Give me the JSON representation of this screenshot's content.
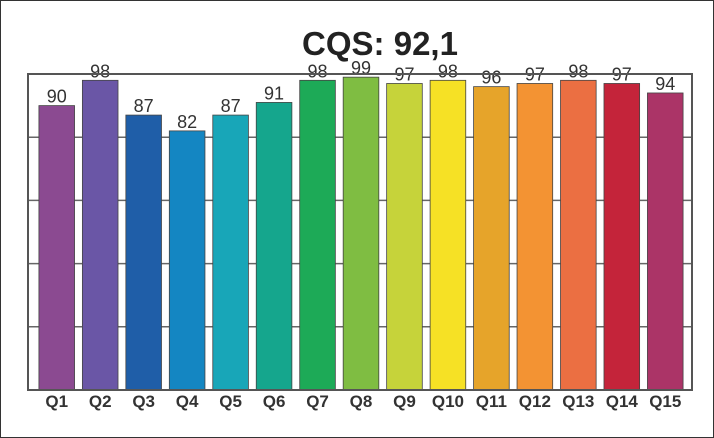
{
  "chart_data": {
    "type": "bar",
    "title": "CQS: 92,1",
    "xlabel": "",
    "ylabel": "",
    "categories": [
      "Q1",
      "Q2",
      "Q3",
      "Q4",
      "Q5",
      "Q6",
      "Q7",
      "Q8",
      "Q9",
      "Q10",
      "Q11",
      "Q12",
      "Q13",
      "Q14",
      "Q15"
    ],
    "values": [
      90,
      98,
      87,
      82,
      87,
      91,
      98,
      99,
      97,
      98,
      96,
      97,
      98,
      97,
      94
    ],
    "data_labels": [
      "90",
      "98",
      "87",
      "82",
      "87",
      "91",
      "98",
      "99",
      "97",
      "98",
      "96",
      "97",
      "98",
      "97",
      "94"
    ],
    "ylim": [
      0,
      100
    ],
    "grid": true,
    "legend": "none",
    "colors": [
      "#8b4a91",
      "#6a56a6",
      "#1f5ea8",
      "#1486c2",
      "#18a6b8",
      "#15a68d",
      "#1daa57",
      "#7fbd42",
      "#c6d33a",
      "#f6e125",
      "#e6a42a",
      "#f39333",
      "#eb6f42",
      "#c4243a",
      "#ab3467"
    ]
  }
}
